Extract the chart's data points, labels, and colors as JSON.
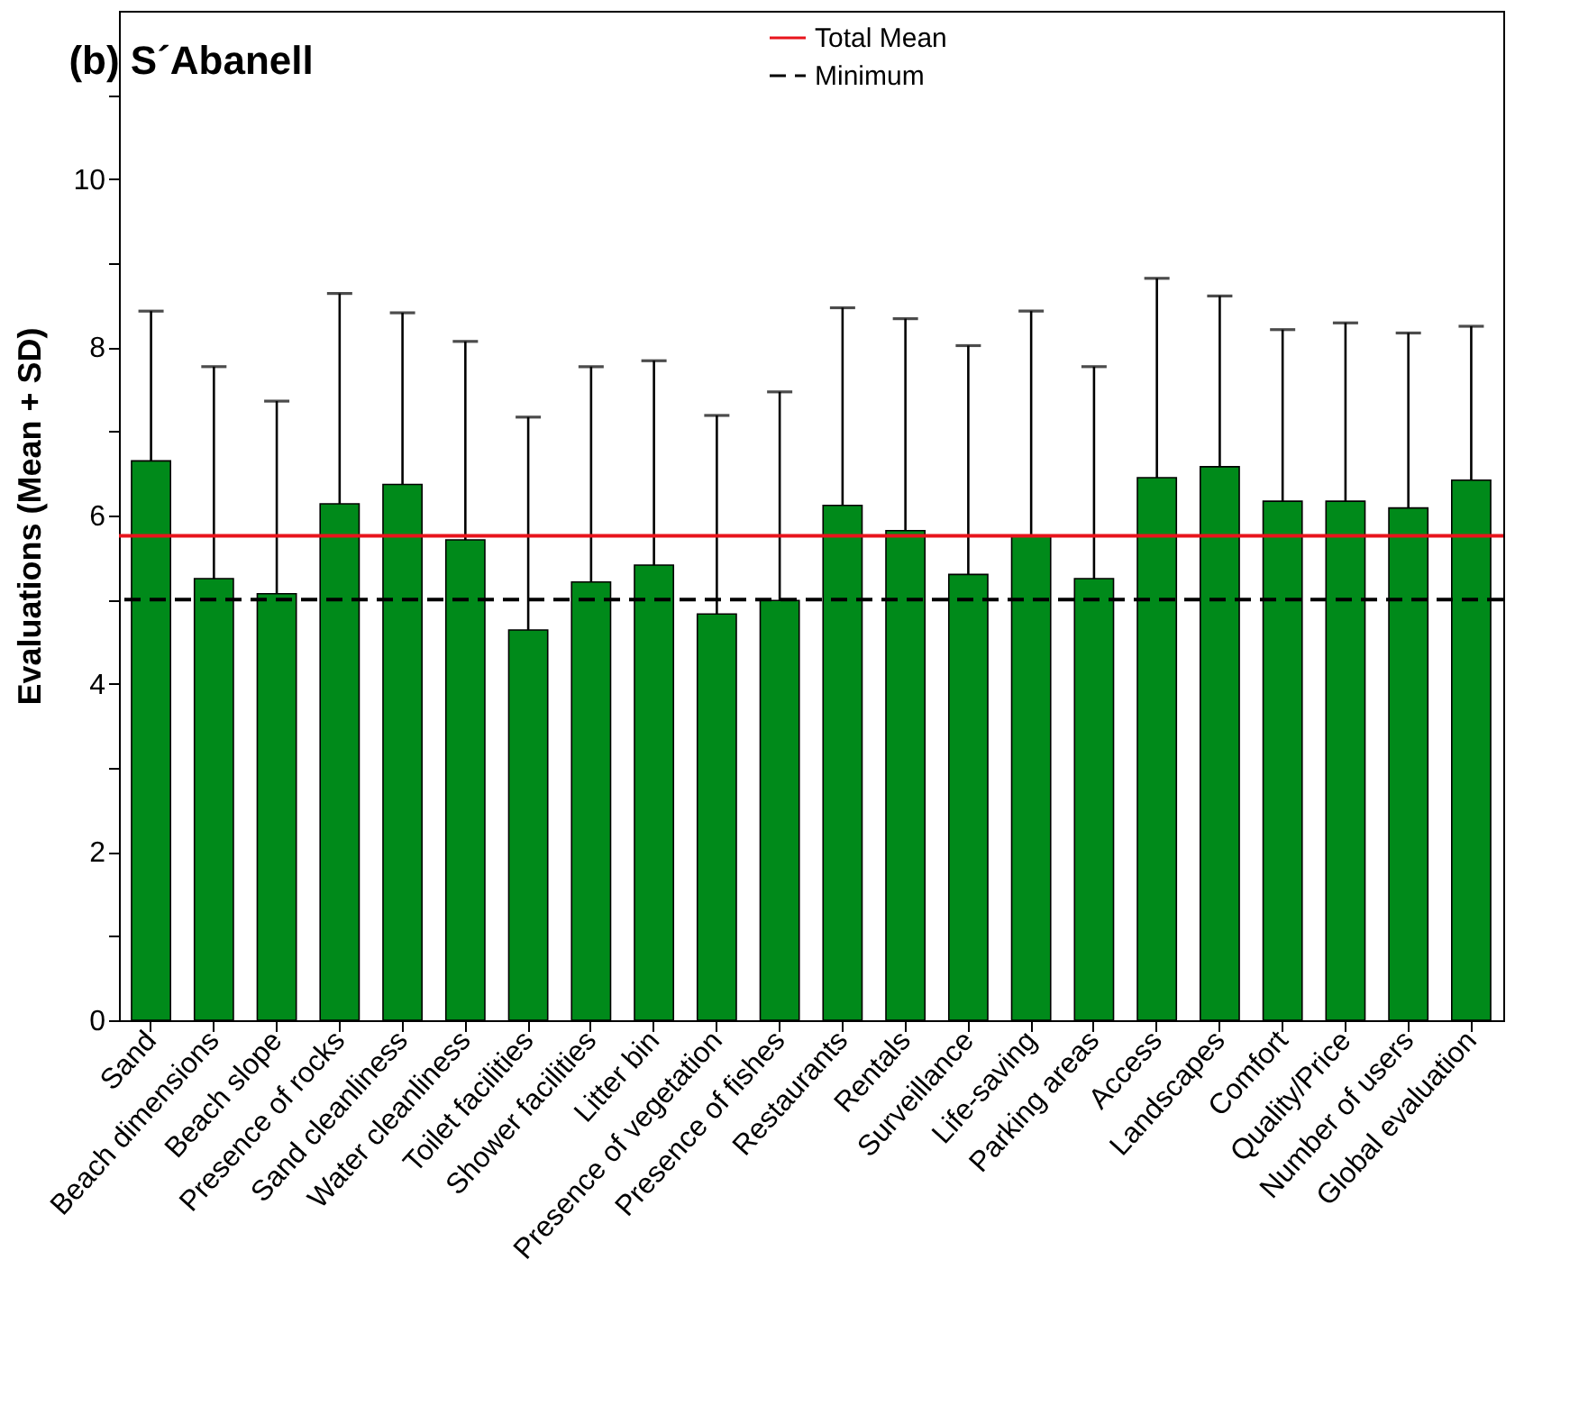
{
  "chart_data": {
    "type": "bar",
    "title": "(b)  S´Abanell",
    "ylabel": "Evaluations (Mean + SD)",
    "categories": [
      "Sand",
      "Beach dimensions",
      "Beach slope",
      "Presence of rocks",
      "Sand cleanliness",
      "Water cleanliness",
      "Toilet facilities",
      "Shower facilities",
      "Litter bin",
      "Presence of vegetation",
      "Presence of fishes",
      "Restaurants",
      "Rentals",
      "Surveillance",
      "Life-saving",
      "Parking areas",
      "Access",
      "Landscapes",
      "Comfort",
      "Quality/Price",
      "Number of users",
      "Global evaluation"
    ],
    "values": [
      6.65,
      5.25,
      5.07,
      6.14,
      6.37,
      5.71,
      4.64,
      5.21,
      5.41,
      4.83,
      4.99,
      6.12,
      5.82,
      5.3,
      5.76,
      5.25,
      6.45,
      6.58,
      6.17,
      6.17,
      6.09,
      6.42
    ],
    "errors": [
      [
        6.65,
        8.43
      ],
      [
        5.25,
        7.77
      ],
      [
        5.07,
        7.36
      ],
      [
        6.14,
        8.64
      ],
      [
        6.37,
        8.41
      ],
      [
        5.71,
        8.07
      ],
      [
        4.64,
        7.17
      ],
      [
        5.21,
        7.77
      ],
      [
        5.41,
        7.84
      ],
      [
        4.83,
        7.19
      ],
      [
        4.99,
        7.47
      ],
      [
        6.12,
        8.47
      ],
      [
        5.82,
        8.34
      ],
      [
        5.3,
        8.02
      ],
      [
        5.76,
        8.43
      ],
      [
        5.25,
        7.77
      ],
      [
        6.45,
        8.82
      ],
      [
        6.58,
        8.61
      ],
      [
        6.17,
        8.21
      ],
      [
        6.17,
        8.29
      ],
      [
        6.09,
        8.17
      ],
      [
        6.42,
        8.25
      ]
    ],
    "color": "#008a1a",
    "ylim": [
      0,
      12
    ],
    "yticks": [
      0,
      {
        "value": 1,
        "label": null
      },
      2,
      {
        "value": 3,
        "label": null
      },
      4,
      {
        "value": 5,
        "label": null
      },
      6,
      {
        "value": 7,
        "label": null
      },
      8,
      {
        "value": 9,
        "label": null
      },
      10,
      {
        "value": 11,
        "label": null
      }
    ],
    "ref_lines": [
      {
        "axis": "y",
        "value": 5.76,
        "label": "Total Mean",
        "color": "#e8141c",
        "line_style": "solid"
      },
      {
        "axis": "y",
        "value": 5,
        "label": "Minimum",
        "color": "#000000",
        "line_style": "dashed"
      }
    ],
    "grid": false,
    "legend": "top"
  }
}
